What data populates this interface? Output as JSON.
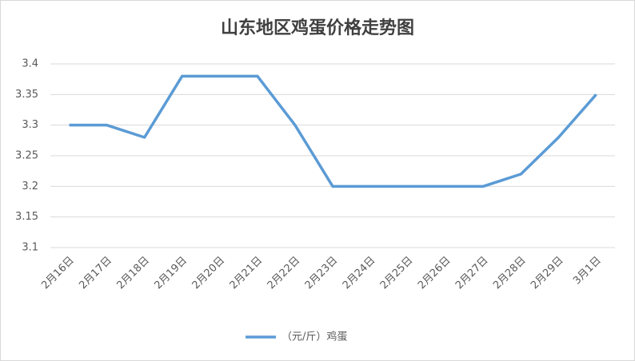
{
  "chart_data": {
    "type": "line",
    "title": "山东地区鸡蛋价格走势图",
    "categories": [
      "2月16日",
      "2月17日",
      "2月18日",
      "2月19日",
      "2月20日",
      "2月21日",
      "2月22日",
      "2月23日",
      "2月24日",
      "2月25日",
      "2月26日",
      "2月27日",
      "2月28日",
      "2月29日",
      "3月1日"
    ],
    "series": [
      {
        "name": "（元/斤）鸡蛋",
        "color": "#5b9bd5",
        "values": [
          3.3,
          3.3,
          3.28,
          3.38,
          3.38,
          3.38,
          3.3,
          3.2,
          3.2,
          3.2,
          3.2,
          3.2,
          3.22,
          3.28,
          3.35
        ]
      }
    ],
    "ylim": [
      3.1,
      3.4
    ],
    "yticks": [
      3.1,
      3.15,
      3.2,
      3.25,
      3.3,
      3.35,
      3.4
    ],
    "grid": true,
    "legend": "bottom"
  }
}
